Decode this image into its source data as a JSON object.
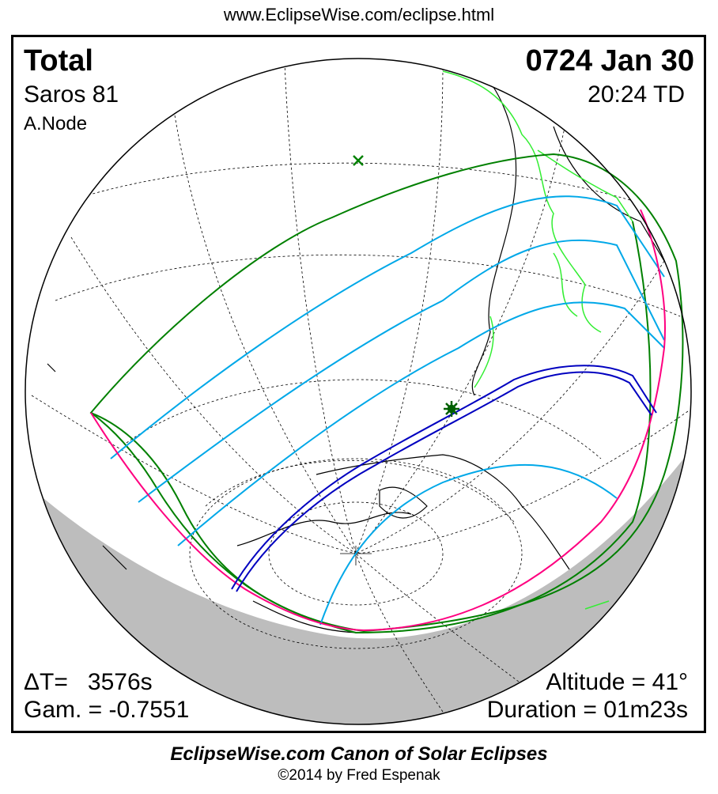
{
  "header": {
    "url": "www.EclipseWise.com/eclipse.html"
  },
  "eclipse": {
    "type": "Total",
    "date": "0724 Jan 30",
    "saros": "Saros  81",
    "time": "20:24 TD",
    "node": "A.Node",
    "delta_t": "ΔT=   3576s",
    "gamma": "Gam. = -0.7551",
    "altitude": "Altitude = 41°",
    "duration": "Duration = 01m23s"
  },
  "colors": {
    "penumbra_limits": "#008000",
    "magnitude_curves": "#00a8e8",
    "central_path": "#0000c0",
    "rise_set_curve": "#ff0080",
    "country_borders": "#33ee33",
    "night_shadow": "#bdbdbd"
  },
  "markers": {
    "greatest_eclipse": "star-icon",
    "subsolar_point": "x-icon"
  },
  "footer": {
    "title": "EclipseWise.com Canon of Solar Eclipses",
    "copyright": "©2014 by Fred Espenak"
  }
}
